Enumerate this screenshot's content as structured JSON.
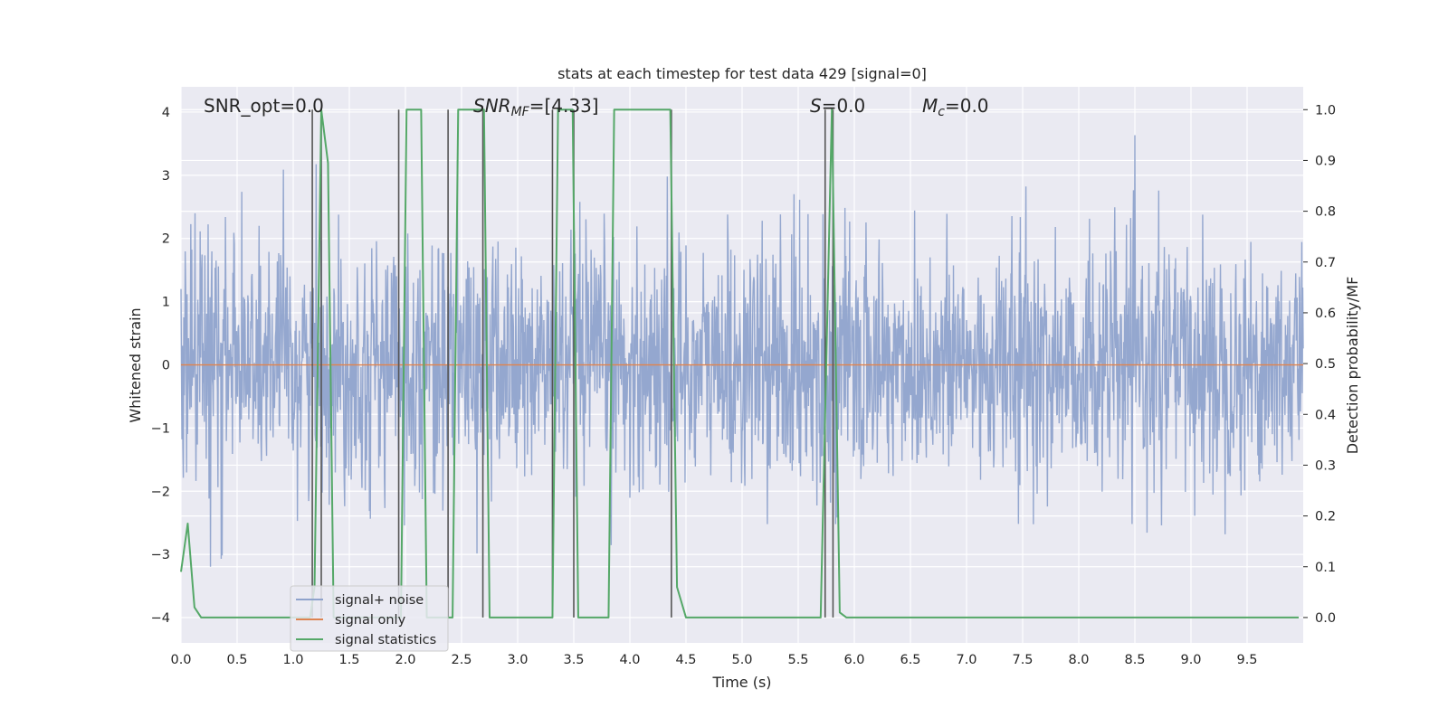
{
  "chart_data": {
    "type": "line",
    "title": "stats at each timestep for test data 429 [signal=0]",
    "xlabel": "Time (s)",
    "ylabel_left": "Whitened strain",
    "ylabel_right": "Detection probability/MF",
    "xlim": [
      0.0,
      10.0
    ],
    "ylim_left": [
      -4.4,
      4.4
    ],
    "ylim_right": [
      -0.05,
      1.045
    ],
    "xticks": [
      "0.0",
      "0.5",
      "1.0",
      "1.5",
      "2.0",
      "2.5",
      "3.0",
      "3.5",
      "4.0",
      "4.5",
      "5.0",
      "5.5",
      "6.0",
      "6.5",
      "7.0",
      "7.5",
      "8.0",
      "8.5",
      "9.0",
      "9.5"
    ],
    "yticks_left": [
      "4",
      "3",
      "2",
      "1",
      "0",
      "−1",
      "−2",
      "−3",
      "−4"
    ],
    "yticks_right": [
      "1.0",
      "0.9",
      "0.8",
      "0.7",
      "0.6",
      "0.5",
      "0.4",
      "0.3",
      "0.2",
      "0.1",
      "0.0"
    ],
    "grid": true,
    "legend_position": "lower-left",
    "annotations": {
      "snr_opt": "SNR_opt=0.0",
      "snr_mf_main": "SNR",
      "snr_mf_sub": "MF",
      "snr_mf_val": "=[4.33]",
      "s_main": "S",
      "s_val": "=0.0",
      "mc_main": "M",
      "mc_sub": "c",
      "mc_val": "=0.0"
    },
    "series": [
      {
        "name": "signal+ noise",
        "color": "#8fa3cc",
        "axis": "left",
        "envelope_note": "noise, approx ±1.6 typical with peaks to ±4",
        "y_typical_range": [
          -1.6,
          1.6
        ],
        "y_peak_range": [
          -4.0,
          4.1
        ]
      },
      {
        "name": "signal only",
        "color": "#dd8452",
        "axis": "left",
        "x": [
          0.0,
          10.0
        ],
        "y": [
          0.0,
          0.0
        ]
      },
      {
        "name": "signal statistics",
        "color": "#55a868",
        "axis": "right",
        "x": [
          0.0,
          0.06,
          0.12,
          0.18,
          1.15,
          1.19,
          1.25,
          1.31,
          1.36,
          1.96,
          2.01,
          2.14,
          2.19,
          2.42,
          2.47,
          2.7,
          2.75,
          3.31,
          3.36,
          3.49,
          3.54,
          3.81,
          3.86,
          4.36,
          4.42,
          4.5,
          5.7,
          5.8,
          5.87,
          5.93,
          9.96
        ],
        "y": [
          0.09,
          0.185,
          0.02,
          0.0,
          0.0,
          0.06,
          1.0,
          0.895,
          0.0,
          0.0,
          1.0,
          1.0,
          0.0,
          0.0,
          1.0,
          1.0,
          0.0,
          0.0,
          1.0,
          1.0,
          0.0,
          0.0,
          1.0,
          1.0,
          0.06,
          0.0,
          0.0,
          1.0,
          0.01,
          0.0,
          0.0
        ]
      }
    ],
    "vertical_lines_x": [
      1.17,
      1.25,
      1.94,
      2.38,
      2.69,
      3.31,
      3.5,
      4.37,
      5.74,
      5.81
    ]
  }
}
